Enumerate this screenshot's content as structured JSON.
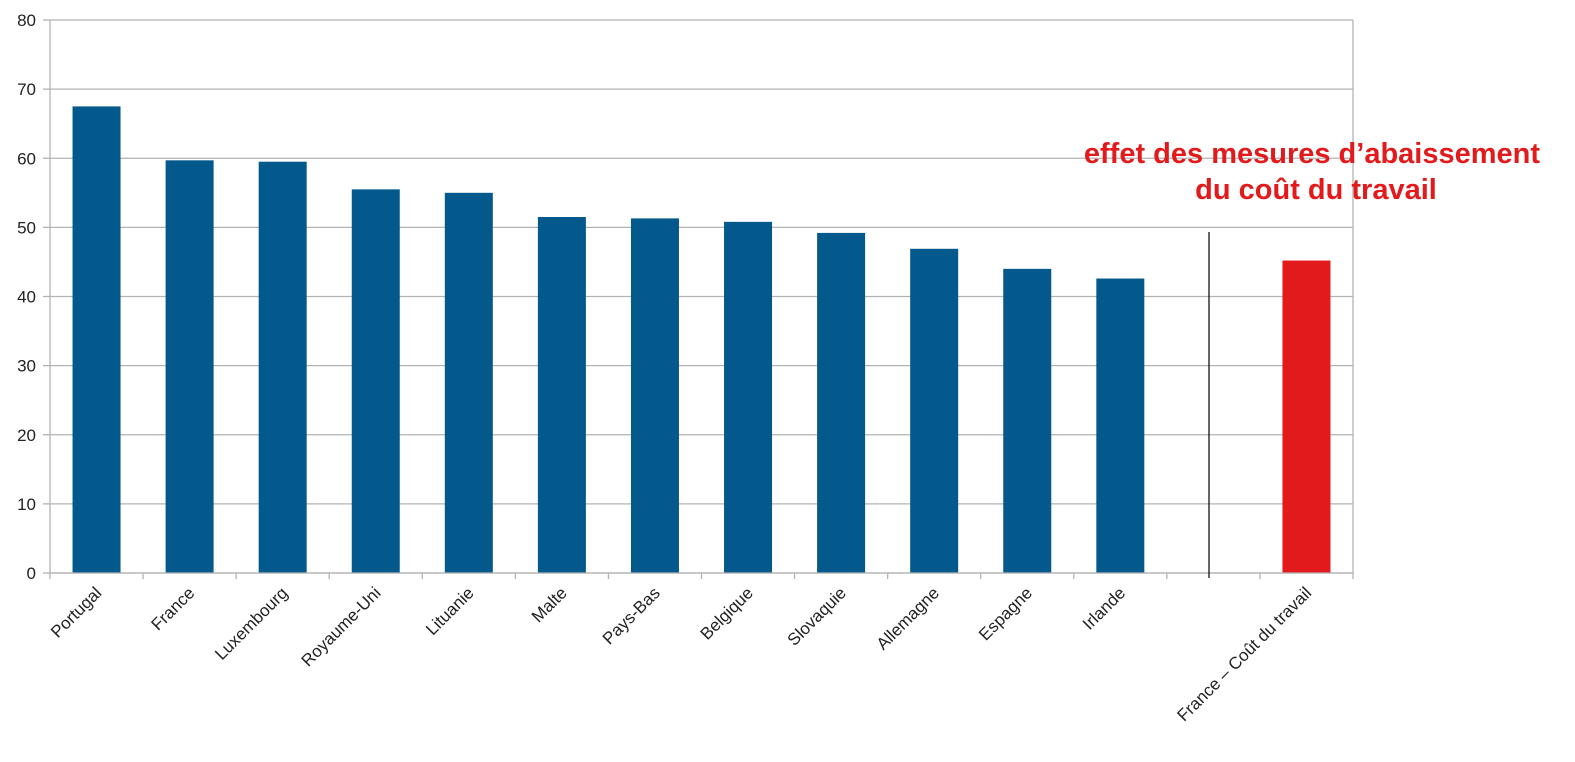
{
  "chart_data": {
    "type": "bar",
    "categories": [
      "Portugal",
      "France",
      "Luxembourg",
      "Royaume-Uni",
      "Lituanie",
      "Malte",
      "Pays-Bas",
      "Belgique",
      "Slovaquie",
      "Allemagne",
      "Espagne",
      "Irlande",
      "",
      "France – Coût du travail"
    ],
    "values": [
      67.5,
      59.7,
      59.5,
      55.5,
      55.0,
      51.5,
      51.3,
      50.8,
      49.2,
      46.9,
      44.0,
      42.6,
      null,
      45.2
    ],
    "highlight_category": "France – Coût du travail",
    "ylim": [
      0,
      80
    ],
    "yticks": [
      0,
      10,
      20,
      30,
      40,
      50,
      60,
      70,
      80
    ],
    "grid": true,
    "legend": "none",
    "colors": {
      "bar": "#04598c",
      "highlight": "#e31a1c",
      "grid": "#b3b3b3",
      "annotation": "#e31a1c"
    },
    "annotation": {
      "lines": [
        "effet des mesures d’abaissement",
        "du coût du travail"
      ]
    }
  }
}
